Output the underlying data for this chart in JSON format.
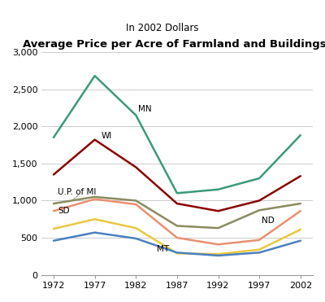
{
  "title": "Average Price per Acre of Farmland and Buildings*",
  "subtitle": "In 2002 Dollars",
  "years": [
    1972,
    1977,
    1982,
    1987,
    1992,
    1997,
    2002
  ],
  "series": [
    {
      "label": "MN",
      "color": "#3a9a7a",
      "values": [
        1850,
        2680,
        2150,
        1100,
        1150,
        1300,
        1880
      ]
    },
    {
      "label": "WI",
      "color": "#8b0000",
      "values": [
        1350,
        1820,
        1450,
        960,
        860,
        1000,
        1330
      ]
    },
    {
      "label": "U.P. of MI",
      "color": "#8b8b60",
      "values": [
        960,
        1050,
        1000,
        660,
        630,
        870,
        960
      ]
    },
    {
      "label": "SD",
      "color": "#e89070",
      "values": [
        860,
        1020,
        950,
        500,
        410,
        470,
        860
      ]
    },
    {
      "label": "ND",
      "color": "#e8c840",
      "values": [
        620,
        750,
        630,
        290,
        280,
        340,
        610
      ]
    },
    {
      "label": "MT",
      "color": "#4a80c0",
      "values": [
        460,
        570,
        490,
        300,
        260,
        300,
        460
      ]
    }
  ],
  "ylim": [
    0,
    3000
  ],
  "yticks": [
    0,
    500,
    1000,
    1500,
    2000,
    2500,
    3000
  ],
  "ytick_labels": [
    "0",
    "500",
    "1,000",
    "1,500",
    "2,000",
    "2,500",
    "3,000"
  ],
  "xticks": [
    1972,
    1977,
    1982,
    1987,
    1992,
    1997,
    2002
  ],
  "bg_color": "#ffffff",
  "plot_bg_color": "#ffffff"
}
